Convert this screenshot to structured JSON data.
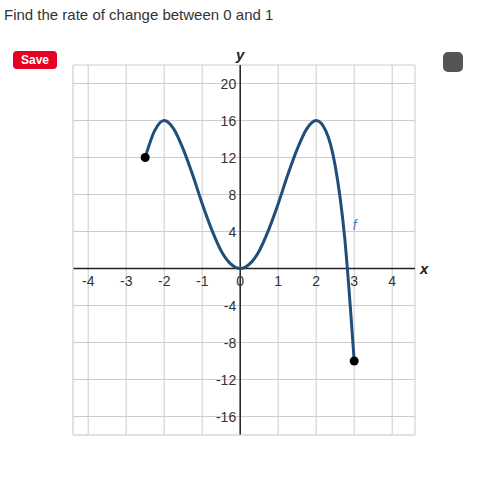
{
  "question": "Find the rate of change between 0 and 1",
  "button": "Save",
  "chart_data": {
    "type": "line",
    "x_label": "x",
    "y_label": "y",
    "curve_label": "f",
    "x": [
      -2.5,
      -2.25,
      -2,
      -1.75,
      -1.5,
      -1.25,
      -1,
      -0.75,
      -0.5,
      -0.25,
      0,
      0.25,
      0.5,
      0.75,
      1,
      1.25,
      1.5,
      1.75,
      2,
      2.25,
      2.5,
      2.75,
      3
    ],
    "values": [
      12,
      14.9,
      16,
      15.1,
      12.9,
      10.1,
      7,
      4.2,
      1.9,
      0.5,
      0,
      0.5,
      1.9,
      4.2,
      7,
      10.1,
      12.9,
      15.1,
      16,
      14.9,
      11.1,
      3.3,
      -10
    ],
    "color": "#1f4e79",
    "marker": "endpoints",
    "xlim": [
      -4.4,
      4.6
    ],
    "ylim": [
      -18,
      22
    ],
    "xticks": [
      -4,
      -3,
      -2,
      -1,
      0,
      1,
      2,
      3,
      4
    ],
    "yticks": [
      -16,
      -12,
      -8,
      -4,
      4,
      8,
      12,
      16,
      20
    ],
    "grid": true
  }
}
